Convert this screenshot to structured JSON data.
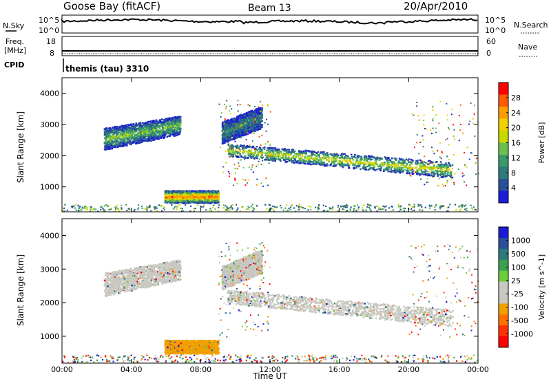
{
  "header": {
    "station": "Goose Bay (fitACF)",
    "beam": "Beam 13",
    "date": "20/Apr/2010"
  },
  "strip": {
    "nsky_label": "N.Sky",
    "nsearch_label": "N.Search",
    "nsky_ticks": [
      "10^5",
      "10^0"
    ],
    "nsearch_ticks": [
      "10^5",
      "10^0"
    ],
    "freq_label_1": "Freq.",
    "freq_label_2": "[MHz]",
    "freq_ticks": [
      "18",
      "8"
    ],
    "nave_label": "Nave",
    "nave_ticks": [
      "60",
      "0"
    ],
    "cpid_label": "CPID",
    "cpid_value": "themis (tau) 3310"
  },
  "chart_data": [
    {
      "type": "heatmap",
      "name": "power",
      "ylabel": "Slant Range [km]",
      "xlabel": "Time UT",
      "ylim": [
        200,
        4500
      ],
      "yticks": [
        "1000",
        "2000",
        "3000",
        "4000"
      ],
      "xticks": [
        "00:00",
        "04:00",
        "08:00",
        "12:00",
        "16:00",
        "20:00",
        "00:00"
      ],
      "xlim_hours": [
        0,
        24
      ],
      "colorbar_label": "Power [dB]",
      "colorbar_ticks": [
        "28",
        "24",
        "20",
        "16",
        "12",
        "8",
        "4"
      ],
      "colorbar_colors": [
        "#ff0000",
        "#ff5a00",
        "#ff9e00",
        "#f0d000",
        "#c8d800",
        "#6dc04e",
        "#3a9a6a",
        "#2e7a7a",
        "#2a4f9a",
        "#1c1cd8"
      ],
      "regions": [
        {
          "t0": 2.4,
          "t1": 6.8,
          "r0a": 2200,
          "r1a": 2700,
          "r0b": 2900,
          "r1b": 3300,
          "level": 0.45
        },
        {
          "t0": 5.9,
          "t1": 9.0,
          "r0a": 500,
          "r1a": 500,
          "r0b": 900,
          "r1b": 900,
          "level": 0.85
        },
        {
          "t0": 9.5,
          "t1": 22.5,
          "r0a": 2000,
          "r1a": 1300,
          "r0b": 2400,
          "r1b": 1800,
          "level": 0.6
        },
        {
          "t0": 9.2,
          "t1": 11.5,
          "r0a": 2400,
          "r1a": 2900,
          "r0b": 3100,
          "r1b": 3600,
          "level": 0.3
        }
      ]
    },
    {
      "type": "heatmap",
      "name": "velocity",
      "ylabel": "Slant Range [km]",
      "xlabel": "Time UT",
      "ylim": [
        200,
        4500
      ],
      "yticks": [
        "1000",
        "2000",
        "3000",
        "4000"
      ],
      "xticks": [
        "00:00",
        "04:00",
        "08:00",
        "12:00",
        "16:00",
        "20:00",
        "00:00"
      ],
      "xlim_hours": [
        0,
        24
      ],
      "colorbar_label": "Velocity [m s^-1]",
      "colorbar_ticks": [
        "1000",
        "500",
        "100",
        "25",
        "-25",
        "-100",
        "-500",
        "-1000"
      ],
      "colorbar_colors": [
        "#1c1cd8",
        "#2a4f9a",
        "#2e7a7a",
        "#3aa050",
        "#6dcc3a",
        "#c8c8c0",
        "#c8c8c0",
        "#f0a000",
        "#ff7000",
        "#ff3000",
        "#ff0000"
      ],
      "regions": [
        {
          "t0": 2.4,
          "t1": 6.8,
          "r0a": 2200,
          "r1a": 2700,
          "r0b": 2900,
          "r1b": 3300,
          "color": "#c8c8c0"
        },
        {
          "t0": 5.9,
          "t1": 9.0,
          "r0a": 500,
          "r1a": 500,
          "r0b": 900,
          "r1b": 900,
          "color": "#f0a000"
        },
        {
          "t0": 9.5,
          "t1": 22.5,
          "r0a": 2000,
          "r1a": 1300,
          "r0b": 2400,
          "r1b": 1800,
          "color": "#c8c8c0"
        },
        {
          "t0": 9.2,
          "t1": 11.5,
          "r0a": 2400,
          "r1a": 2900,
          "r0b": 3100,
          "r1b": 3600,
          "color": "#c8c8c0"
        }
      ]
    }
  ],
  "xaxis_label": "Time UT",
  "xaxis_ticks": [
    "00:00",
    "04:00",
    "08:00",
    "12:00",
    "16:00",
    "20:00",
    "00:00"
  ]
}
